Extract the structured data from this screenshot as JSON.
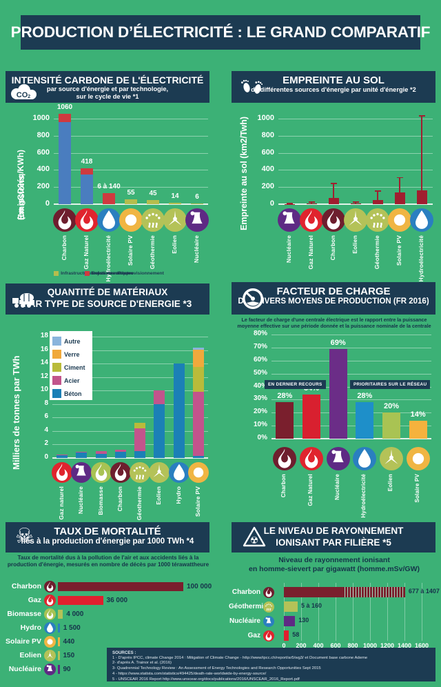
{
  "title": "PRODUCTION D’ÉLECTRICITÉ : LE GRAND COMPARATIF",
  "colors": {
    "background": "#3cb176",
    "navy": "#1c3b52",
    "emissions_directes": "#4a7dbf",
    "infrastructures": "#b5bd4d",
    "methane": "#cf3a3f",
    "empreinte_bar": "#a01e2f",
    "charbon": "#6e1e2e",
    "gaz": "#e0242e",
    "hydro": "#2a7fc0",
    "solaire": "#f0b543",
    "geothermie": "#b4c258",
    "eolien": "#b4c258",
    "nucleaire": "#5e2a84",
    "biomasse": "#a9c353",
    "beton": "#1b80b6",
    "acier": "#c2548c",
    "ciment": "#b9bb3a",
    "verre": "#f0a93c",
    "autre": "#8ab4dc"
  },
  "panels": {
    "carbon": {
      "title": "INTENSITÉ CARBONE DE L'ÉLECTRICITÉ",
      "sub1": "par source d'énergie et par technologie,",
      "sub2": "sur le cycle de vie *1"
    },
    "footprint": {
      "title": "EMPREINTE AU SOL",
      "sub": "de différentes sources d'énergie par unité d'énergie *2"
    },
    "materials": {
      "title1": "QUANTITÉ DE MATÉRIAUX",
      "title2": "PAR TYPE DE SOURCE D'ENERGIE *3"
    },
    "load": {
      "title1": "FACTEUR DE CHARGE",
      "title2": "DES DIVERS MOYENS DE PRODUCTION (FR 2016)",
      "desc": "Le facteur de charge d'une centrale électrique est le rapport entre la puissance moyenne effective sur une période donnée et la puissance nominale de la centrale"
    },
    "mortality": {
      "title1": "TAUX DE MORTALITÉ",
      "title2": "liés à la production d'énergie par 1000 TWh *4",
      "desc": "Taux de mortalité dus à la pollution de l'air et aux accidents liés à la production d'énergie, mesurés en nombre de décès par 1000 térawattheure"
    },
    "radiation": {
      "title1": "LE NIVEAU DE RAYONNEMENT",
      "title2": "IONISANT PAR FILIÈRE *5",
      "desc1": "Niveau de rayonnement ionisant",
      "desc2": "en homme-sievert par gigawatt (homme.mSv/GW)"
    }
  },
  "chart_data": [
    {
      "id": "carbon-intensity",
      "type": "bar",
      "title": "INTENSITÉ CARBONE DE L'ÉLECTRICITÉ par source d'énergie et par technologie, sur le cycle de vie",
      "ylabel": "Emissions (en gCO2éq/KWh)",
      "ylabel_lines": [
        "Emissions",
        "(en gCO2éq/KWh)"
      ],
      "ylim": [
        0,
        1000
      ],
      "yticks": [
        0,
        200,
        400,
        600,
        800,
        1000
      ],
      "categories": [
        "Charbon",
        "Gaz Naturel",
        "Hydroélectricité",
        "Solaire PV",
        "Géothermie",
        "Eolien",
        "Nucléaire"
      ],
      "icons": [
        "flame",
        "flame",
        "drop",
        "sun",
        "geyser",
        "turbine",
        "tower"
      ],
      "icon_colors": [
        "#6e1e2e",
        "#e0242e",
        "#2a7fc0",
        "#f0b543",
        "#b4c258",
        "#b4c258",
        "#5e2a84"
      ],
      "value_labels": [
        "1060",
        "418",
        "6 à 140",
        "55",
        "45",
        "14",
        "6"
      ],
      "stacks": [
        [
          {
            "name": "Emissions directes",
            "v": 960,
            "c": "#4a7dbf"
          },
          {
            "name": "Rejets de méthane",
            "v": 100,
            "c": "#cf3a3f"
          }
        ],
        [
          {
            "name": "Emissions directes",
            "v": 350,
            "c": "#4a7dbf"
          },
          {
            "name": "Rejets de méthane",
            "v": 68,
            "c": "#cf3a3f"
          }
        ],
        [
          {
            "name": "Rejets de méthane",
            "v": 130,
            "c": "#cf3a3f"
          }
        ],
        [
          {
            "name": "Infrastructures et chaîne d'approvisionnement",
            "v": 55,
            "c": "#b5bd4d"
          }
        ],
        [
          {
            "name": "Infrastructures et chaîne d'approvisionnement",
            "v": 45,
            "c": "#b5bd4d"
          }
        ],
        [
          {
            "name": "Infrastructures et chaîne d'approvisionnement",
            "v": 14,
            "c": "#b5bd4d"
          }
        ],
        [
          {
            "name": "Infrastructures et chaîne d'approvisionnement",
            "v": 6,
            "c": "#b5bd4d"
          }
        ]
      ],
      "legend": [
        {
          "label": "Emissions directes",
          "color": "#4a7dbf"
        },
        {
          "label": "Infrastructures et chaîne d'approvisionnement",
          "color": "#b5bd4d"
        },
        {
          "label": "Rejets de méthane",
          "color": "#cf3a3f"
        }
      ]
    },
    {
      "id": "land-footprint",
      "type": "bar",
      "title": "EMPREINTE AU SOL de différentes sources d'énergie par unité d'énergie",
      "ylabel": "Empreinte au sol (km2/Twh)",
      "ylabel_lines": [
        "Empreinte au sol (km2/Twh)"
      ],
      "ylim": [
        0,
        1000
      ],
      "yticks": [
        0,
        200,
        400,
        600,
        800,
        1000
      ],
      "categories": [
        "Nucléaire",
        "Gaz Naturel",
        "Charbon",
        "Eolien",
        "Géothermie",
        "Solaire PV",
        "Hydroélectricité"
      ],
      "icons": [
        "tower",
        "flame",
        "flame",
        "turbine",
        "geyser",
        "sun",
        "drop"
      ],
      "icon_colors": [
        "#5e2a84",
        "#e0242e",
        "#6e1e2e",
        "#b4c258",
        "#b4c258",
        "#f0b543",
        "#2a7fc0"
      ],
      "values": [
        3,
        10,
        70,
        10,
        45,
        140,
        160
      ],
      "error_max": [
        10,
        25,
        240,
        25,
        150,
        310,
        1030
      ],
      "bar_color": "#a01e2f"
    },
    {
      "id": "materials",
      "type": "stacked-bar",
      "title": "QUANTITÉ DE MATÉRIAUX PAR TYPE DE SOURCE D'ENERGIE",
      "ylabel": "Milliers de tonnes par TWh",
      "ylabel_lines": [
        "Milliers de tonnes par TWh"
      ],
      "ylim": [
        0,
        18
      ],
      "yticks": [
        0,
        2,
        4,
        6,
        8,
        10,
        12,
        14,
        16,
        18
      ],
      "categories": [
        "Gaz naturel",
        "Nucléaire",
        "Biomasse",
        "Charbon",
        "Géothermie",
        "Eolien",
        "Hydro",
        "Solaire PV"
      ],
      "icons": [
        "flame",
        "tower",
        "flame",
        "flame",
        "geyser",
        "turbine",
        "drop",
        "sun"
      ],
      "icon_colors": [
        "#e0242e",
        "#5e2a84",
        "#a9c353",
        "#6e1e2e",
        "#b4c258",
        "#b4c258",
        "#2a7fc0",
        "#f0b543"
      ],
      "stacks": [
        [
          {
            "name": "Béton",
            "v": 0.4,
            "c": "#1b80b6"
          },
          {
            "name": "Acier",
            "v": 0.1,
            "c": "#c2548c"
          }
        ],
        [
          {
            "name": "Béton",
            "v": 0.8,
            "c": "#1b80b6"
          },
          {
            "name": "Acier",
            "v": 0.1,
            "c": "#c2548c"
          }
        ],
        [
          {
            "name": "Béton",
            "v": 0.6,
            "c": "#1b80b6"
          },
          {
            "name": "Acier",
            "v": 0.4,
            "c": "#c2548c"
          }
        ],
        [
          {
            "name": "Béton",
            "v": 0.9,
            "c": "#1b80b6"
          },
          {
            "name": "Acier",
            "v": 0.3,
            "c": "#c2548c"
          }
        ],
        [
          {
            "name": "Béton",
            "v": 1.0,
            "c": "#1b80b6"
          },
          {
            "name": "Acier",
            "v": 3.4,
            "c": "#c2548c"
          },
          {
            "name": "Ciment",
            "v": 0.8,
            "c": "#b9bb3a"
          }
        ],
        [
          {
            "name": "Béton",
            "v": 8.0,
            "c": "#1b80b6"
          },
          {
            "name": "Acier",
            "v": 2.0,
            "c": "#c2548c"
          }
        ],
        [
          {
            "name": "Béton",
            "v": 14.0,
            "c": "#1b80b6"
          }
        ],
        [
          {
            "name": "Béton",
            "v": 0.3,
            "c": "#1b80b6"
          },
          {
            "name": "Acier",
            "v": 9.5,
            "c": "#c2548c"
          },
          {
            "name": "Ciment",
            "v": 3.7,
            "c": "#b9bb3a"
          },
          {
            "name": "Verre",
            "v": 2.6,
            "c": "#f0a93c"
          },
          {
            "name": "Autre",
            "v": 0.3,
            "c": "#8ab4dc"
          }
        ]
      ],
      "legend": [
        {
          "label": "Autre",
          "color": "#8ab4dc"
        },
        {
          "label": "Verre",
          "color": "#f0a93c"
        },
        {
          "label": "Ciment",
          "color": "#b9bb3a"
        },
        {
          "label": "Acier",
          "color": "#c2548c"
        },
        {
          "label": "Béton",
          "color": "#1b80b6"
        }
      ]
    },
    {
      "id": "load-factor",
      "type": "bar",
      "title": "FACTEUR DE CHARGE DES DIVERS MOYENS DE PRODUCTION (FR 2016)",
      "ylim": [
        0,
        80
      ],
      "yticks": [
        0,
        10,
        20,
        30,
        40,
        50,
        60,
        70,
        80
      ],
      "tick_suffix": "%",
      "categories": [
        "Charbon",
        "Gaz Naturel",
        "Nucléaire",
        "Hydroélectricité",
        "Eolien",
        "Solaire PV"
      ],
      "icons": [
        "flame",
        "flame",
        "tower",
        "drop",
        "turbine",
        "sun"
      ],
      "icon_colors": [
        "#6e1e2e",
        "#e0242e",
        "#5e2a84",
        "#2a7fc0",
        "#b4c258",
        "#f0b543"
      ],
      "values": [
        28,
        34,
        69,
        28,
        20,
        14
      ],
      "value_labels": [
        "28%",
        "34%",
        "69%",
        "28%",
        "20%",
        "14%"
      ],
      "bar_colors": [
        "#7a1f2d",
        "#d8202f",
        "#6b2d87",
        "#1e8fc9",
        "#a9c353",
        "#f5b23d"
      ],
      "annotations": [
        "EN DERNIER RECOURS",
        "PRIORITAIRES SUR LE RÉSEAU"
      ]
    },
    {
      "id": "mortality",
      "type": "hbar",
      "title": "TAUX DE MORTALITÉ liés à la production d'énergie par 1000 TWh",
      "xlim": [
        0,
        100000
      ],
      "rows": [
        {
          "label": "Charbon",
          "icon": "flame",
          "icon_color": "#6e1e2e",
          "bar_color": "#7a1f2d",
          "value": 100000,
          "value_label": "100 000"
        },
        {
          "label": "Gaz",
          "icon": "flame",
          "icon_color": "#e0242e",
          "bar_color": "#e01f2e",
          "value": 36000,
          "value_label": "36 000"
        },
        {
          "label": "Biomasse",
          "icon": "flame",
          "icon_color": "#a9c353",
          "bar_color": "#b4c258",
          "value": 4000,
          "value_label": "4 000"
        },
        {
          "label": "Hydro",
          "icon": "drop",
          "icon_color": "#2a7fc0",
          "bar_color": "#2a7fc0",
          "value": 1500,
          "value_label": "1 500"
        },
        {
          "label": "Solaire PV",
          "icon": "sun",
          "icon_color": "#f0b543",
          "bar_color": "#f0b543",
          "value": 440,
          "value_label": "440"
        },
        {
          "label": "Eolien",
          "icon": "turbine",
          "icon_color": "#b4c258",
          "bar_color": "#b4c258",
          "value": 150,
          "value_label": "150"
        },
        {
          "label": "Nucléaire",
          "icon": "tower",
          "icon_color": "#5e2a84",
          "bar_color": "#5e2a84",
          "value": 90,
          "value_label": "90"
        }
      ]
    },
    {
      "id": "radiation",
      "type": "hbar",
      "title": "LE NIVEAU DE RAYONNEMENT IONISANT PAR FILIÈRE",
      "xlim": [
        0,
        1600
      ],
      "xticks": [
        0,
        200,
        400,
        600,
        800,
        1000,
        1200,
        1400,
        1600
      ],
      "rows": [
        {
          "label": "Charbon",
          "icon": "flame",
          "icon_color": "#6e1e2e",
          "bar_color": "#7a1f2d",
          "value": 677,
          "range_max": 1407,
          "value_label": "677 à 1407"
        },
        {
          "label": "Géothermie",
          "icon": "geyser",
          "icon_color": "#b4c258",
          "bar_color": "#b4c258",
          "value": 160,
          "value_label": "5 à 160"
        },
        {
          "label": "Nucléaire",
          "icon": "tower",
          "icon_color": "#2a7fc0",
          "bar_color": "#5e2a84",
          "value": 130,
          "value_label": "130"
        },
        {
          "label": "Gaz",
          "icon": "flame",
          "icon_color": "#e0242e",
          "bar_color": "#e01f2e",
          "value": 58,
          "value_label": "58"
        }
      ]
    }
  ],
  "sources": {
    "heading": "SOURCES :",
    "lines": [
      "1 - D'après IPCC, climate Change 2014 : Mitigation of Climate Change - http://www/ipcc.ch/report/ar5/wg3/ et Document base carbone Ademe",
      "2- d'après A. Trainor et al. (2016)",
      "3- Quadrennial Technology Review : An Assessment of Energy Technologies and Research Opportunities Sept 2015",
      "4 - https://www.statista.com/statistics/494425/death-rate-worldwide-by-energy-source/",
      "5 - UNSCEAR 2016 Report http://www.unscear.org/docs/publications/2016/UNSCEAR_2016_Report.pdf"
    ]
  }
}
